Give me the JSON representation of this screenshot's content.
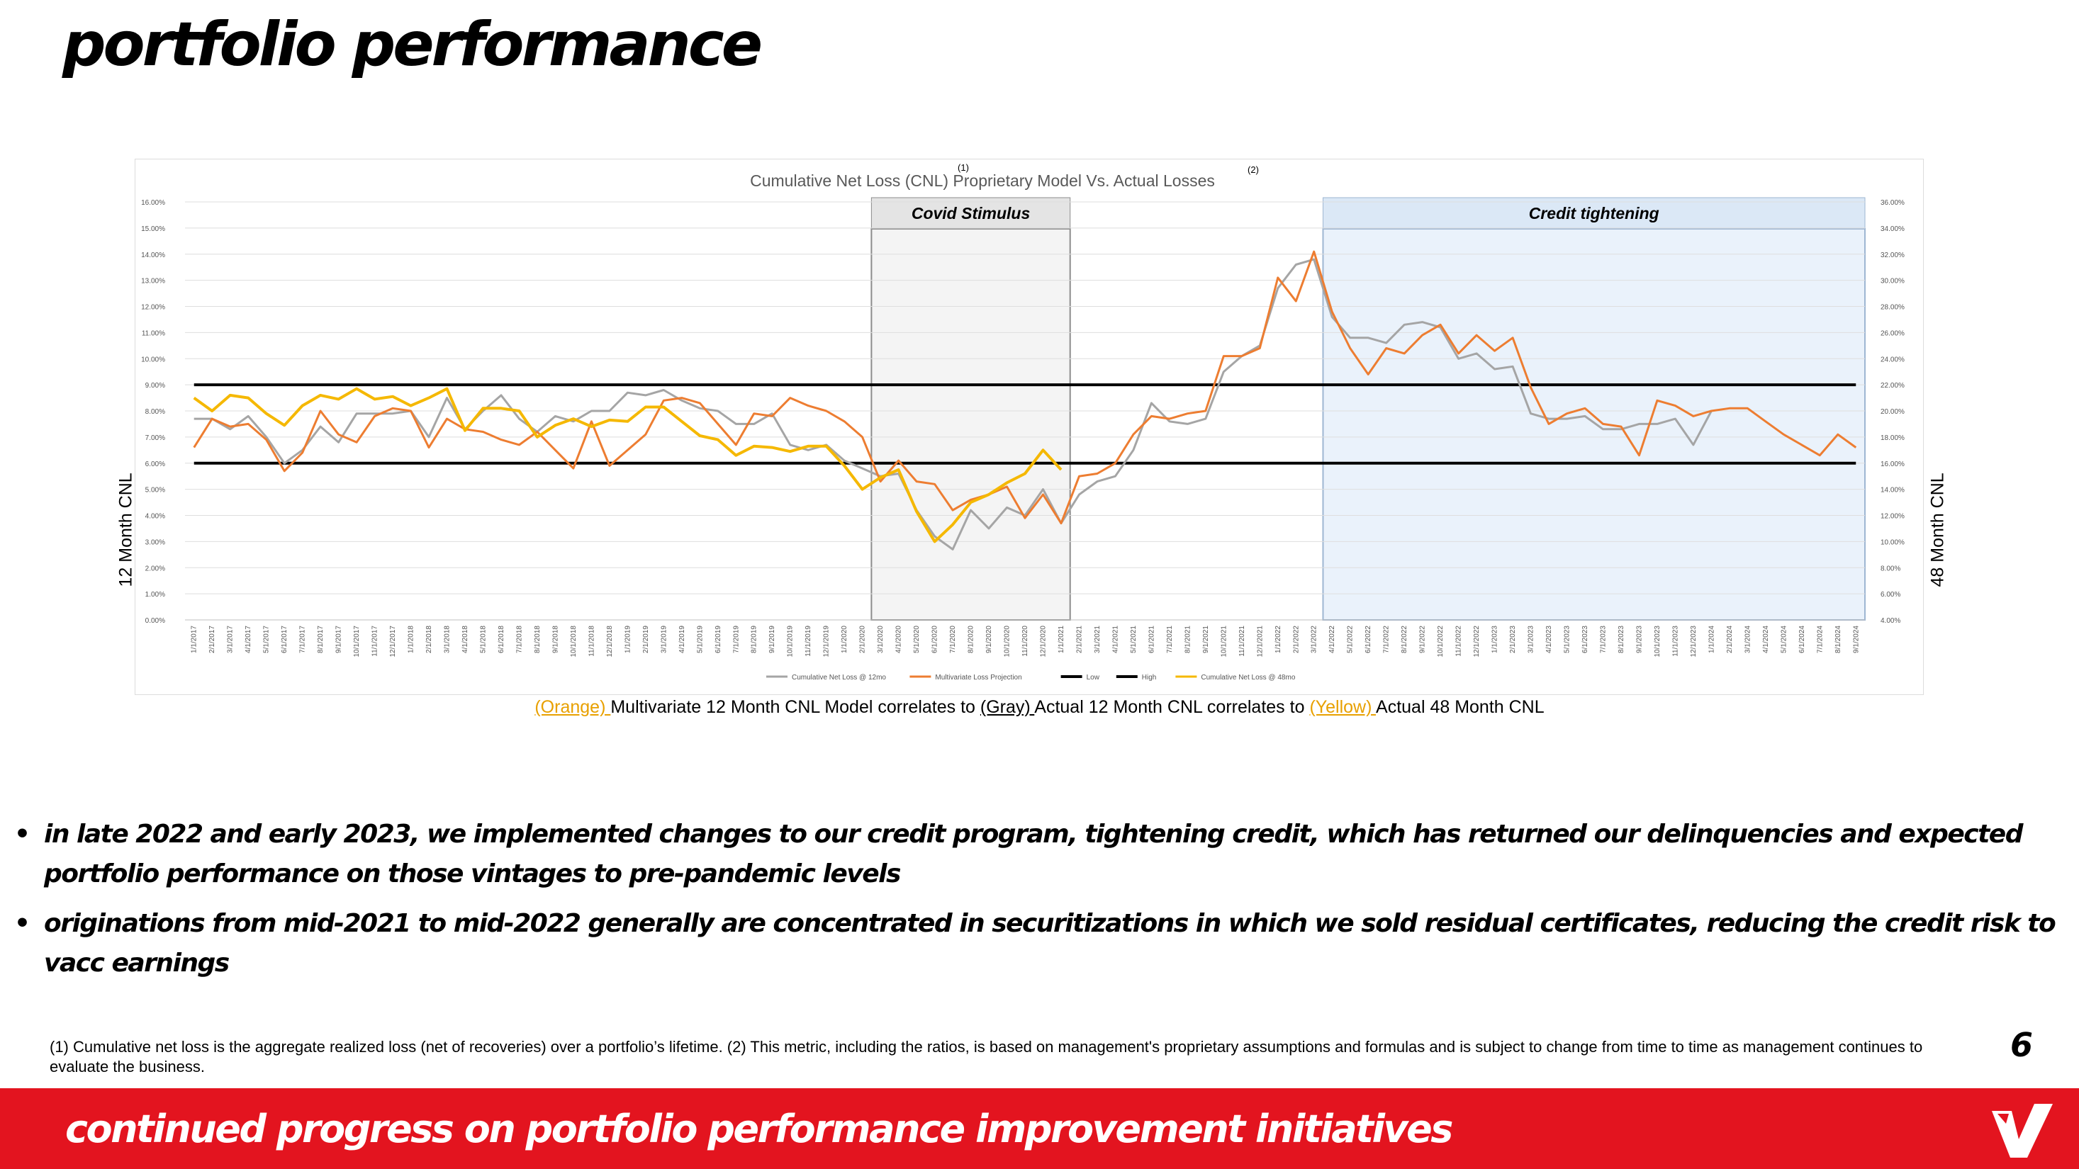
{
  "page": {
    "title": "portfolio performance",
    "left_axis_title": "12 Month CNL",
    "right_axis_title": "48 Month CNL",
    "caption": {
      "orange": "(Orange) ",
      "part1": "Multivariate 12 Month CNL Model correlates to ",
      "gray": "(Gray) ",
      "part2": "Actual 12 Month CNL correlates to ",
      "yellow": "(Yellow) ",
      "part3": "Actual 48 Month CNL"
    },
    "bullets": [
      "in late 2022 and early 2023, we implemented changes to our credit program, tightening credit, which has returned our delinquencies and expected portfolio performance on those vintages to pre-pandemic levels",
      "originations from mid-2021 to mid-2022 generally are concentrated in securitizations in which we sold residual certificates, reducing the credit risk to vacc earnings"
    ],
    "footnote": "(1) Cumulative net loss is the aggregate realized loss (net of recoveries) over a portfolio’s lifetime. (2) This metric, including the ratios, is based on management's proprietary assumptions and formulas and is subject to change from time to time as management continues to evaluate the business.",
    "page_number": "6",
    "footer_text": "continued progress on portfolio performance improvement initiatives",
    "logo_icon": "v-logo-icon",
    "colors": {
      "brand_red": "#e3141f",
      "gray_series": "#a5a5a5",
      "orange_series": "#ed7d31",
      "yellow_series": "#f5b800",
      "threshold_lines": "#000000"
    }
  },
  "chart_data": {
    "type": "line",
    "title": "Cumulative Net Loss (CNL) Proprietary Model Vs. Actual Losses",
    "title_marks": [
      "(1)",
      "(2)"
    ],
    "x_start": "1/1/2017",
    "x_end": "9/1/2024",
    "x_interval": "monthly",
    "x_tick_labels": [
      "1/1/2017",
      "2/1/2017",
      "3/1/2017",
      "4/1/2017",
      "5/1/2017",
      "6/1/2017",
      "7/1/2017",
      "8/1/2017",
      "9/1/2017",
      "10/1/2017",
      "11/1/2017",
      "12/1/2017",
      "1/1/2018",
      "2/1/2018",
      "3/1/2018",
      "4/1/2018",
      "5/1/2018",
      "6/1/2018",
      "7/1/2018",
      "8/1/2018",
      "9/1/2018",
      "10/1/2018",
      "11/1/2018",
      "12/1/2018",
      "1/1/2019",
      "2/1/2019",
      "3/1/2019",
      "4/1/2019",
      "5/1/2019",
      "6/1/2019",
      "7/1/2019",
      "8/1/2019",
      "9/1/2019",
      "10/1/2019",
      "11/1/2019",
      "12/1/2019",
      "1/1/2020",
      "2/1/2020",
      "3/1/2020",
      "4/1/2020",
      "5/1/2020",
      "6/1/2020",
      "7/1/2020",
      "8/1/2020",
      "9/1/2020",
      "10/1/2020",
      "11/1/2020",
      "12/1/2020",
      "1/1/2021",
      "2/1/2021",
      "3/1/2021",
      "4/1/2021",
      "5/1/2021",
      "6/1/2021",
      "7/1/2021",
      "8/1/2021",
      "9/1/2021",
      "10/1/2021",
      "11/1/2021",
      "12/1/2021",
      "1/1/2022",
      "2/1/2022",
      "3/1/2022",
      "4/1/2022",
      "5/1/2022",
      "6/1/2022",
      "7/1/2022",
      "8/1/2022",
      "9/1/2022",
      "10/1/2022",
      "11/1/2022",
      "12/1/2022",
      "1/1/2023",
      "2/1/2023",
      "3/1/2023",
      "4/1/2023",
      "5/1/2023",
      "6/1/2023",
      "7/1/2023",
      "8/1/2023",
      "9/1/2023",
      "10/1/2023",
      "11/1/2023",
      "12/1/2023",
      "1/1/2024",
      "2/1/2024",
      "3/1/2024",
      "4/1/2024",
      "5/1/2024",
      "6/1/2024",
      "7/1/2024",
      "8/1/2024",
      "9/1/2024"
    ],
    "y_left": {
      "label": "12 Month CNL",
      "min": 0,
      "max": 16,
      "step": 1,
      "tick_labels": [
        "0.00%",
        "1.00%",
        "2.00%",
        "3.00%",
        "4.00%",
        "5.00%",
        "6.00%",
        "7.00%",
        "8.00%",
        "9.00%",
        "10.00%",
        "11.00%",
        "12.00%",
        "13.00%",
        "14.00%",
        "15.00%",
        "16.00%"
      ]
    },
    "y_right": {
      "label": "48 Month CNL",
      "min": 4,
      "max": 36,
      "step": 2,
      "tick_labels": [
        "4.00%",
        "6.00%",
        "8.00%",
        "10.00%",
        "12.00%",
        "14.00%",
        "16.00%",
        "18.00%",
        "20.00%",
        "22.00%",
        "24.00%",
        "26.00%",
        "28.00%",
        "30.00%",
        "32.00%",
        "34.00%",
        "36.00%"
      ]
    },
    "grid": true,
    "legend_position": "bottom",
    "regions": [
      {
        "label": "Covid Stimulus",
        "start": "3/1/2020",
        "end": "1/1/2021"
      },
      {
        "label": "Credit tightening",
        "start": "4/1/2022",
        "end": "9/1/2024"
      }
    ],
    "series": [
      {
        "name": "Cumulative Net Loss @ 12mo",
        "axis": "left",
        "color": "#a5a5a5",
        "values": [
          7.7,
          7.7,
          7.3,
          7.8,
          7.0,
          6.0,
          6.5,
          7.4,
          6.8,
          7.9,
          7.9,
          7.9,
          8.0,
          7.0,
          8.5,
          7.3,
          8.0,
          8.6,
          7.7,
          7.2,
          7.8,
          7.6,
          8.0,
          8.0,
          8.7,
          8.6,
          8.8,
          8.4,
          8.1,
          8.0,
          7.5,
          7.5,
          7.9,
          6.7,
          6.5,
          6.7,
          6.1,
          5.8,
          5.5,
          5.6,
          4.2,
          3.2,
          2.7,
          4.2,
          3.5,
          4.3,
          4.0,
          5.0,
          3.7,
          4.8,
          5.3,
          5.5,
          6.5,
          8.3,
          7.6,
          7.5,
          7.7,
          9.5,
          10.1,
          10.5,
          12.7,
          13.6,
          13.8,
          11.6,
          10.8,
          10.8,
          10.6,
          11.3,
          11.4,
          11.2,
          10.0,
          10.2,
          9.6,
          9.7,
          7.9,
          7.7,
          7.7,
          7.8,
          7.3,
          7.3,
          7.5,
          7.5,
          7.7,
          6.7,
          8.0,
          null,
          null,
          null,
          null,
          null,
          null,
          null,
          null
        ]
      },
      {
        "name": "Multivariate Loss Projection",
        "axis": "left",
        "color": "#ed7d31",
        "values": [
          6.6,
          7.7,
          7.4,
          7.5,
          6.9,
          5.7,
          6.4,
          8.0,
          7.1,
          6.8,
          7.8,
          8.1,
          8.0,
          6.6,
          7.7,
          7.3,
          7.2,
          6.9,
          6.7,
          7.2,
          6.5,
          5.8,
          7.6,
          5.9,
          6.5,
          7.1,
          8.4,
          8.5,
          8.3,
          7.5,
          6.7,
          7.9,
          7.8,
          8.5,
          8.2,
          8.0,
          7.6,
          7.0,
          5.3,
          6.1,
          5.3,
          5.2,
          4.2,
          4.6,
          4.8,
          5.1,
          3.9,
          4.8,
          3.7,
          5.5,
          5.6,
          6.0,
          7.1,
          7.8,
          7.7,
          7.9,
          8.0,
          10.1,
          10.1,
          10.4,
          13.1,
          12.2,
          14.1,
          11.8,
          10.4,
          9.4,
          10.4,
          10.2,
          10.9,
          11.3,
          10.2,
          10.9,
          10.3,
          10.8,
          8.9,
          7.5,
          7.9,
          8.1,
          7.5,
          7.4,
          6.3,
          8.4,
          8.2,
          7.8,
          8.0,
          8.1,
          8.1,
          7.6,
          7.1,
          6.7,
          6.3,
          7.1,
          6.6
        ]
      },
      {
        "name": "Low",
        "axis": "left",
        "color": "#000000",
        "values": [
          6.0,
          6.0
        ]
      },
      {
        "name": "High",
        "axis": "left",
        "color": "#000000",
        "values": [
          9.0,
          9.0
        ]
      },
      {
        "name": "Cumulative Net Loss @ 48mo",
        "axis": "right",
        "color": "#f5b800",
        "values": [
          21.0,
          20.0,
          21.2,
          21.0,
          19.8,
          18.9,
          20.4,
          21.2,
          20.9,
          21.7,
          20.9,
          21.1,
          20.4,
          21.0,
          21.7,
          18.5,
          20.2,
          20.2,
          20.0,
          18.0,
          18.9,
          19.4,
          18.8,
          19.3,
          19.2,
          20.3,
          20.3,
          19.2,
          18.1,
          17.8,
          16.6,
          17.3,
          17.2,
          16.9,
          17.3,
          17.3,
          15.8,
          14.0,
          14.9,
          15.5,
          12.3,
          10.0,
          11.3,
          13.0,
          13.6,
          14.5,
          15.2,
          17.0,
          15.5
        ]
      }
    ]
  }
}
